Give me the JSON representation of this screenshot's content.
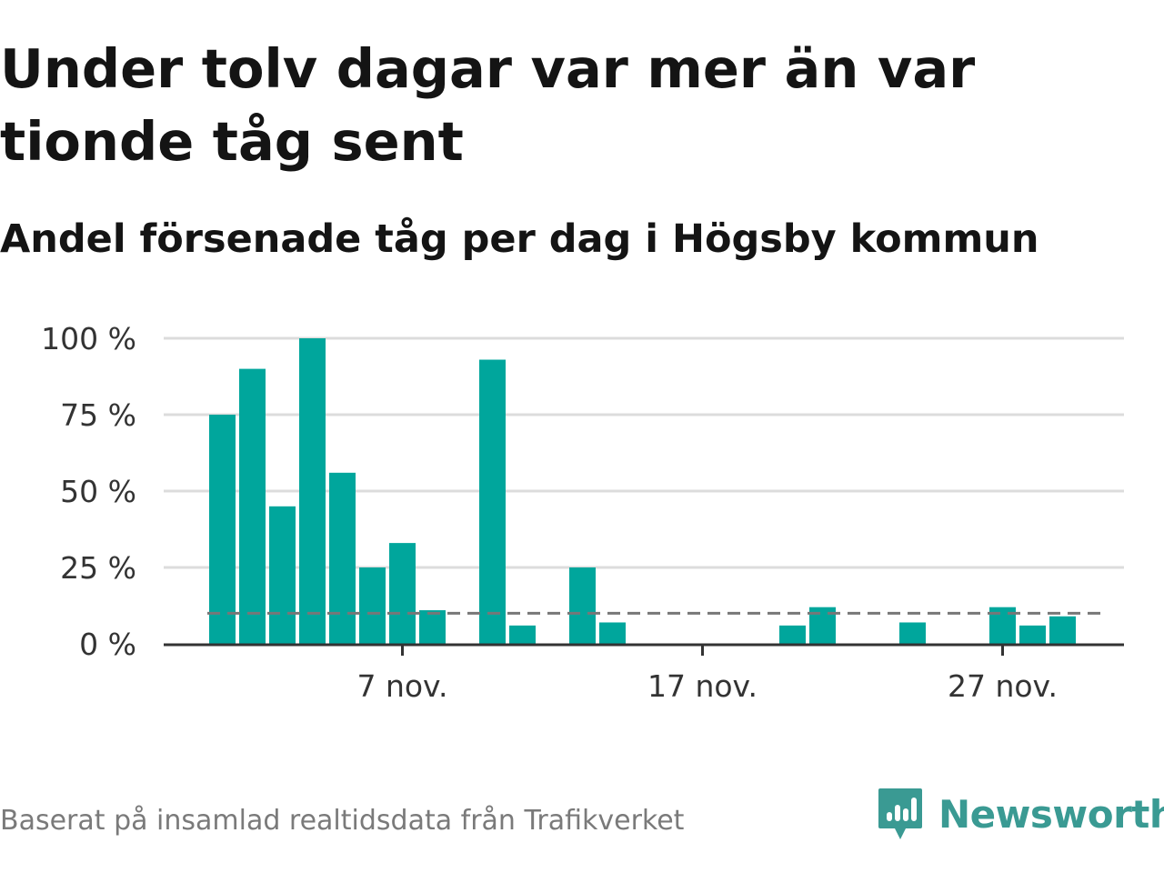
{
  "title": "Under tolv dagar var mer än var tionde tåg sent",
  "subtitle": "Andel försenade tåg per dag i Högsby kommun",
  "source": "Baserat på insamlad realtidsdata från Trafikverket",
  "brand": {
    "name": "Newsworthy",
    "color": "#3a9a93",
    "icon": "newsworthy-chart-icon"
  },
  "chart_data": {
    "type": "bar",
    "x_dates": [
      "1 nov.",
      "2 nov.",
      "3 nov.",
      "4 nov.",
      "5 nov.",
      "6 nov.",
      "7 nov.",
      "8 nov.",
      "9 nov.",
      "10 nov.",
      "11 nov.",
      "12 nov.",
      "13 nov.",
      "14 nov.",
      "15 nov.",
      "16 nov.",
      "17 nov.",
      "18 nov.",
      "19 nov.",
      "20 nov.",
      "21 nov.",
      "22 nov.",
      "23 nov.",
      "24 nov.",
      "25 nov.",
      "26 nov.",
      "27 nov.",
      "28 nov.",
      "29 nov.",
      "30 nov."
    ],
    "values": [
      75,
      90,
      45,
      100,
      56,
      25,
      33,
      11,
      null,
      93,
      6,
      null,
      25,
      7,
      null,
      null,
      null,
      null,
      null,
      6,
      12,
      null,
      null,
      7,
      null,
      null,
      12,
      6,
      9,
      null
    ],
    "reference_line": {
      "value": 10,
      "style": "dashed"
    },
    "x_tick_labels": [
      "7 nov.",
      "17 nov.",
      "27 nov."
    ],
    "y_tick_labels": [
      "0 %",
      "25 %",
      "50 %",
      "75 %",
      "100 %"
    ],
    "ylim": [
      0,
      100
    ],
    "grid": true,
    "bar_color": "#00a69c",
    "reference_color": "#777777"
  }
}
